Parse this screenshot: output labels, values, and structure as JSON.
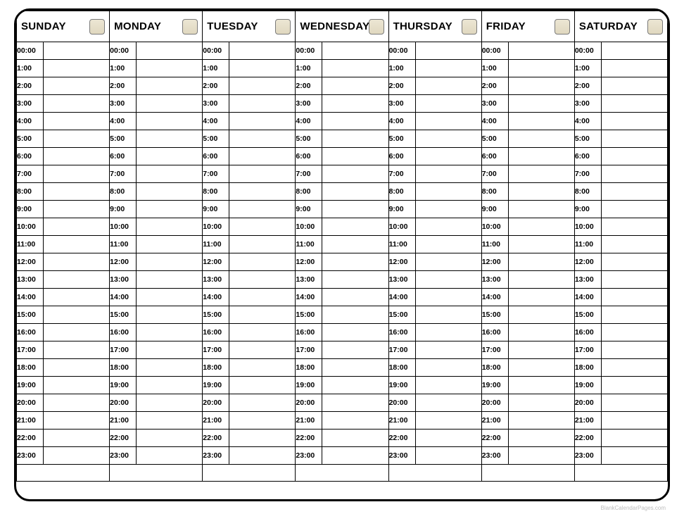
{
  "calendar": {
    "type": "table",
    "border_color": "#000000",
    "background_color": "#ffffff",
    "corner_radius": 22,
    "header_font_size": 15,
    "header_font_weight": "bold",
    "time_font_size": 10.5,
    "time_font_weight": "bold",
    "checkbox": {
      "width": 22,
      "height": 22,
      "border_color": "#7a7a7a",
      "fill_top": "#ece6d4",
      "fill_bottom": "#e0d8c0",
      "border_radius": 4
    },
    "days": [
      {
        "label": "SUNDAY"
      },
      {
        "label": "MONDAY"
      },
      {
        "label": "TUESDAY"
      },
      {
        "label": "WEDNESDAY"
      },
      {
        "label": "THURSDAY"
      },
      {
        "label": "FRIDAY"
      },
      {
        "label": "SATURDAY"
      }
    ],
    "hours": [
      "00:00",
      "1:00",
      "2:00",
      "3:00",
      "4:00",
      "5:00",
      "6:00",
      "7:00",
      "8:00",
      "9:00",
      "10:00",
      "11:00",
      "12:00",
      "13:00",
      "14:00",
      "15:00",
      "16:00",
      "17:00",
      "18:00",
      "19:00",
      "20:00",
      "21:00",
      "22:00",
      "23:00"
    ]
  },
  "watermark": "BlankCalendarPages.com"
}
